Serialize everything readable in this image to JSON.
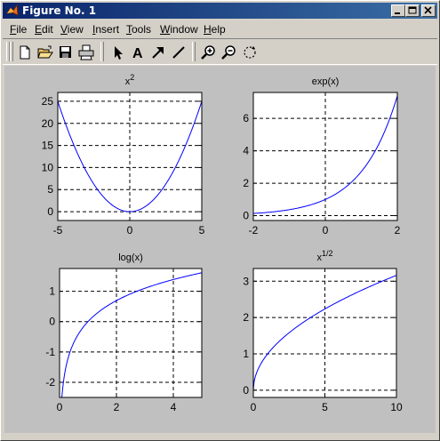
{
  "window": {
    "title": "Figure No. 1",
    "controls": {
      "minimize": "minimize",
      "maximize": "maximize",
      "close": "close"
    }
  },
  "menu": [
    {
      "label": "File",
      "underline": "F"
    },
    {
      "label": "Edit",
      "underline": "E"
    },
    {
      "label": "View",
      "underline": "V"
    },
    {
      "label": "Insert",
      "underline": "I"
    },
    {
      "label": "Tools",
      "underline": "T"
    },
    {
      "label": "Window",
      "underline": "W"
    },
    {
      "label": "Help",
      "underline": "H"
    }
  ],
  "toolbar": [
    {
      "name": "new-figure-icon"
    },
    {
      "name": "open-file-icon"
    },
    {
      "name": "save-icon"
    },
    {
      "name": "print-icon"
    },
    {
      "name": "select-arrow-icon"
    },
    {
      "name": "insert-text-icon"
    },
    {
      "name": "insert-arrow-icon"
    },
    {
      "name": "insert-line-icon"
    },
    {
      "name": "zoom-in-icon"
    },
    {
      "name": "zoom-out-icon"
    },
    {
      "name": "rotate-3d-icon"
    }
  ],
  "colors": {
    "line": "#0000ff",
    "axes_bg": "#ffffff",
    "figure_bg": "#c0c0c0"
  },
  "chart_data": [
    {
      "type": "line",
      "title": "x",
      "title_sup": "2",
      "function": "x^2",
      "xlim": [
        -5,
        5
      ],
      "ylim": [
        -2,
        27
      ],
      "xticks": [
        -5,
        0,
        5
      ],
      "yticks": [
        0,
        5,
        10,
        15,
        20,
        25
      ],
      "grid": true,
      "series": [
        {
          "x": [
            -5,
            -4,
            -3,
            -2,
            -1,
            0,
            1,
            2,
            3,
            4,
            5
          ],
          "y": [
            25,
            16,
            9,
            4,
            1,
            0,
            1,
            4,
            9,
            16,
            25
          ]
        }
      ]
    },
    {
      "type": "line",
      "title": "exp(x)",
      "title_sup": "",
      "function": "exp",
      "xlim": [
        -2,
        2
      ],
      "ylim": [
        -0.3,
        7.6
      ],
      "xticks": [
        -2,
        0,
        2
      ],
      "yticks": [
        0,
        2,
        4,
        6
      ],
      "grid": true,
      "series": [
        {
          "x": [
            -2,
            -1.5,
            -1,
            -0.5,
            0,
            0.5,
            1,
            1.5,
            2
          ],
          "y": [
            0.135,
            0.223,
            0.368,
            0.607,
            1,
            1.649,
            2.718,
            4.482,
            7.389
          ]
        }
      ]
    },
    {
      "type": "line",
      "title": "log(x)",
      "title_sup": "",
      "function": "log",
      "xlim": [
        0,
        5
      ],
      "ylim": [
        -2.5,
        1.75
      ],
      "xticks": [
        0,
        2,
        4
      ],
      "yticks": [
        -2,
        -1,
        0,
        1
      ],
      "grid": true,
      "series": [
        {
          "x": [
            0.08,
            0.25,
            0.5,
            1,
            2,
            3,
            4,
            5
          ],
          "y": [
            -2.526,
            -1.386,
            -0.693,
            0,
            0.693,
            1.099,
            1.386,
            1.609
          ]
        }
      ]
    },
    {
      "type": "line",
      "title": "x",
      "title_sup": "1/2",
      "function": "sqrt",
      "xlim": [
        0,
        10
      ],
      "ylim": [
        -0.2,
        3.35
      ],
      "xticks": [
        0,
        5,
        10
      ],
      "yticks": [
        0,
        1,
        2,
        3
      ],
      "grid": true,
      "series": [
        {
          "x": [
            0,
            1,
            2,
            4,
            6,
            8,
            10
          ],
          "y": [
            0,
            1,
            1.414,
            2,
            2.449,
            2.828,
            3.162
          ]
        }
      ]
    }
  ]
}
